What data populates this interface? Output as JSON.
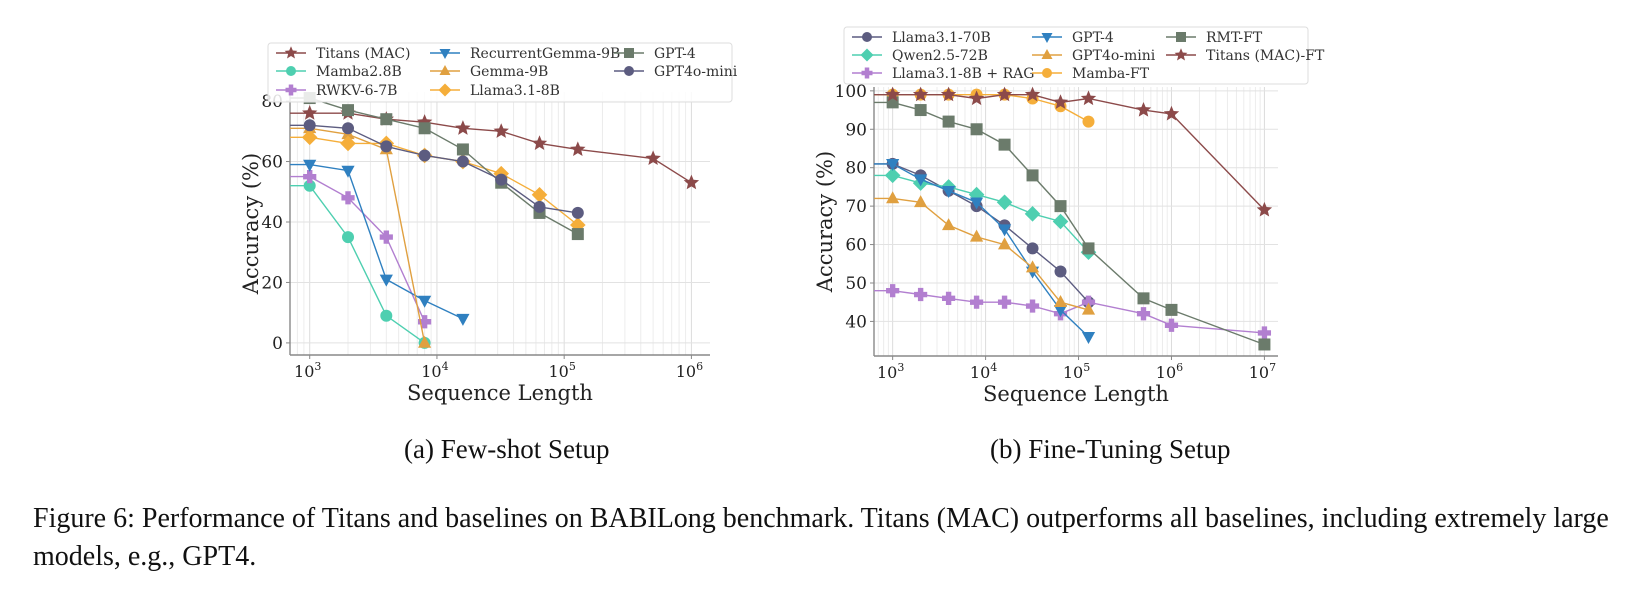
{
  "chart_data": [
    {
      "type": "line",
      "id": "few-shot",
      "title": "",
      "subcaption": "(a) Few-shot Setup",
      "xlabel": "Sequence Length",
      "ylabel": "Accuracy (%)",
      "xscale": "log",
      "xlim": [
        700,
        1400000
      ],
      "ylim": [
        -4,
        83
      ],
      "xticks": [
        {
          "v": 1000,
          "exp": "3"
        },
        {
          "v": 10000,
          "exp": "4"
        },
        {
          "v": 100000,
          "exp": "5"
        },
        {
          "v": 1000000,
          "exp": "6"
        }
      ],
      "yticks": [
        0,
        20,
        40,
        60,
        80
      ],
      "grid": true,
      "legend": {
        "position": "top",
        "columns": 3
      },
      "series": [
        {
          "name": "Titans (MAC)",
          "color": "#8c4a4a",
          "marker": "star",
          "x": [
            1000,
            2000,
            4000,
            8000,
            16000,
            32000,
            64000,
            128000,
            500000,
            1000000
          ],
          "y": [
            76,
            76,
            74,
            73,
            71,
            70,
            66,
            64,
            61,
            53
          ]
        },
        {
          "name": "Mamba2.8B",
          "color": "#4ecfb0",
          "marker": "circle",
          "x": [
            1000,
            2000,
            4000,
            8000
          ],
          "y": [
            52,
            35,
            9,
            0
          ]
        },
        {
          "name": "RWKV-6-7B",
          "color": "#b27fd0",
          "marker": "plus",
          "x": [
            1000,
            2000,
            4000,
            8000
          ],
          "y": [
            55,
            48,
            35,
            7
          ]
        },
        {
          "name": "RecurrentGemma-9B",
          "color": "#2f80c0",
          "marker": "triangle-down",
          "x": [
            1000,
            2000,
            4000,
            8000,
            16000
          ],
          "y": [
            59,
            57,
            21,
            14,
            8
          ]
        },
        {
          "name": "Gemma-9B",
          "color": "#e0a040",
          "marker": "triangle-up",
          "x": [
            1000,
            2000,
            4000,
            8000
          ],
          "y": [
            71,
            69,
            64,
            0
          ]
        },
        {
          "name": "Llama3.1-8B",
          "color": "#f5ae3a",
          "marker": "diamond",
          "x": [
            1000,
            2000,
            4000,
            8000,
            16000,
            32000,
            64000,
            128000
          ],
          "y": [
            68,
            66,
            66,
            62,
            60,
            56,
            49,
            39
          ]
        },
        {
          "name": "GPT-4",
          "color": "#6b7b6b",
          "marker": "square",
          "x": [
            1000,
            2000,
            4000,
            8000,
            16000,
            32000,
            64000,
            128000
          ],
          "y": [
            81,
            77,
            74,
            71,
            64,
            53,
            43,
            36
          ]
        },
        {
          "name": "GPT4o-mini",
          "color": "#5c5c80",
          "marker": "circle",
          "x": [
            1000,
            2000,
            4000,
            8000,
            16000,
            32000,
            64000,
            128000
          ],
          "y": [
            72,
            71,
            65,
            62,
            60,
            54,
            45,
            43
          ]
        }
      ]
    },
    {
      "type": "line",
      "id": "fine-tuning",
      "title": "",
      "subcaption": "(b) Fine-Tuning Setup",
      "xlabel": "Sequence Length",
      "ylabel": "Accuracy (%)",
      "xscale": "log",
      "xlim": [
        630,
        14000000
      ],
      "ylim": [
        31,
        101
      ],
      "xticks": [
        {
          "v": 1000,
          "exp": "3"
        },
        {
          "v": 10000,
          "exp": "4"
        },
        {
          "v": 100000,
          "exp": "5"
        },
        {
          "v": 1000000,
          "exp": "6"
        },
        {
          "v": 10000000,
          "exp": "7"
        }
      ],
      "yticks": [
        40,
        50,
        60,
        70,
        80,
        90,
        100
      ],
      "grid": true,
      "legend": {
        "position": "top",
        "columns": 3
      },
      "series": [
        {
          "name": "Llama3.1-70B",
          "color": "#5c5c80",
          "marker": "circle",
          "x": [
            1000,
            2000,
            4000,
            8000,
            16000,
            32000,
            64000,
            128000
          ],
          "y": [
            81,
            78,
            74,
            70,
            65,
            59,
            53,
            45
          ]
        },
        {
          "name": "Qwen2.5-72B",
          "color": "#4ecfb0",
          "marker": "diamond",
          "x": [
            1000,
            2000,
            4000,
            8000,
            16000,
            32000,
            64000,
            128000
          ],
          "y": [
            78,
            76,
            75,
            73,
            71,
            68,
            66,
            58
          ]
        },
        {
          "name": "Llama3.1-8B + RAG",
          "color": "#b27fd0",
          "marker": "plus",
          "x": [
            1000,
            2000,
            4000,
            8000,
            16000,
            32000,
            64000,
            128000,
            500000,
            1000000,
            10000000
          ],
          "y": [
            48,
            47,
            46,
            45,
            45,
            44,
            42,
            45,
            42,
            39,
            37
          ]
        },
        {
          "name": "GPT-4",
          "color": "#2f80c0",
          "marker": "triangle-down",
          "x": [
            1000,
            2000,
            4000,
            8000,
            16000,
            32000,
            64000,
            128000
          ],
          "y": [
            81,
            77,
            74,
            71,
            64,
            53,
            43,
            36
          ]
        },
        {
          "name": "GPT4o-mini",
          "color": "#e0a040",
          "marker": "triangle-up",
          "x": [
            1000,
            2000,
            4000,
            8000,
            16000,
            32000,
            64000,
            128000
          ],
          "y": [
            72,
            71,
            65,
            62,
            60,
            54,
            45,
            43
          ]
        },
        {
          "name": "Mamba-FT",
          "color": "#f5ae3a",
          "marker": "circle",
          "x": [
            1000,
            2000,
            4000,
            8000,
            16000,
            32000,
            64000,
            128000
          ],
          "y": [
            99,
            99,
            99,
            99,
            99,
            98,
            96,
            92
          ]
        },
        {
          "name": "RMT-FT",
          "color": "#6b7b6b",
          "marker": "square",
          "x": [
            1000,
            2000,
            4000,
            8000,
            16000,
            32000,
            64000,
            128000,
            500000,
            1000000,
            10000000
          ],
          "y": [
            97,
            95,
            92,
            90,
            86,
            78,
            70,
            59,
            46,
            43,
            34
          ]
        },
        {
          "name": "Titans (MAC)-FT",
          "color": "#8c4a4a",
          "marker": "star",
          "x": [
            1000,
            2000,
            4000,
            8000,
            16000,
            32000,
            64000,
            128000,
            500000,
            1000000,
            10000000
          ],
          "y": [
            99,
            99,
            99,
            98,
            99,
            99,
            97,
            98,
            95,
            94,
            69
          ]
        }
      ]
    }
  ],
  "captions": {
    "sub_a": "(a) Few-shot Setup",
    "sub_b": "(b) Fine-Tuning Setup",
    "figure": "Figure 6: Performance of Titans and baselines on BABILong benchmark. Titans (MAC) outperforms all baselines, including extremely large models, e.g., GPT4."
  }
}
